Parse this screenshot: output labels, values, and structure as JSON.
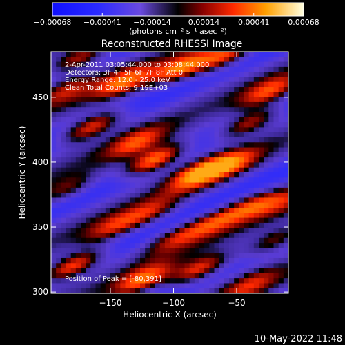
{
  "chart_data": {
    "type": "heatmap",
    "title": "Reconstructed RHESSI Image",
    "xlabel": "Heliocentric X (arcsec)",
    "ylabel": "Heliocentric Y (arcsec)",
    "xlim": [
      -197,
      -9
    ],
    "ylim": [
      299,
      485
    ],
    "x_ticks": [
      -150,
      -100,
      -50
    ],
    "x_tick_labels": [
      "−150",
      "−100",
      "−50"
    ],
    "y_ticks": [
      300,
      350,
      400,
      450
    ],
    "y_tick_labels": [
      "300",
      "350",
      "400",
      "450"
    ],
    "colorbar": {
      "ticks": [
        -0.00068,
        -0.00041,
        -0.00014,
        0.00014,
        0.00041,
        0.00068
      ],
      "tick_labels": [
        "−0.00068",
        "−0.00041",
        "−0.00014",
        "0.00014",
        "0.00041",
        "0.00068"
      ],
      "units_label": "(photons cm⁻² s⁻¹ asec⁻²)",
      "range": [
        -0.00068,
        0.00068
      ]
    },
    "annotations": [
      "2-Apr-2011 03:05:44.000 to 03:08:44.000",
      "Detectors: 3F 4F 5F 6F 7F 8F  Att 0",
      "Energy Range: 12.0 - 25.0 keV",
      "Clean     Total Counts: 9.19E+03"
    ],
    "peak_label": "Position of Peak = [-80,391]",
    "peak_position": [
      -80,
      391
    ],
    "grid": false,
    "blobs": [
      {
        "x": -80,
        "y": 391,
        "intensity": 1.0
      },
      {
        "x": -115,
        "y": 402,
        "intensity": 0.85
      },
      {
        "x": -55,
        "y": 398,
        "intensity": 0.8
      },
      {
        "x": -130,
        "y": 415,
        "intensity": 0.75
      },
      {
        "x": -165,
        "y": 427,
        "intensity": 0.7
      },
      {
        "x": -140,
        "y": 462,
        "intensity": 0.85
      },
      {
        "x": -95,
        "y": 473,
        "intensity": 0.85
      },
      {
        "x": -60,
        "y": 482,
        "intensity": 0.7
      },
      {
        "x": -25,
        "y": 455,
        "intensity": 0.75
      },
      {
        "x": -40,
        "y": 430,
        "intensity": 0.6
      },
      {
        "x": -175,
        "y": 480,
        "intensity": 0.6
      },
      {
        "x": -185,
        "y": 455,
        "intensity": 0.55
      },
      {
        "x": -150,
        "y": 350,
        "intensity": 0.55
      },
      {
        "x": -120,
        "y": 362,
        "intensity": 0.55
      },
      {
        "x": -100,
        "y": 340,
        "intensity": 0.5
      },
      {
        "x": -70,
        "y": 352,
        "intensity": 0.6
      },
      {
        "x": -40,
        "y": 365,
        "intensity": 0.6
      },
      {
        "x": -20,
        "y": 340,
        "intensity": 0.5
      },
      {
        "x": -180,
        "y": 320,
        "intensity": 0.75
      },
      {
        "x": -125,
        "y": 310,
        "intensity": 0.85
      },
      {
        "x": -80,
        "y": 318,
        "intensity": 0.7
      },
      {
        "x": -40,
        "y": 305,
        "intensity": 0.6
      },
      {
        "x": -15,
        "y": 370,
        "intensity": 0.5
      },
      {
        "x": -185,
        "y": 380,
        "intensity": 0.45
      }
    ]
  },
  "footer": {
    "date": "10-May-2022 11:48"
  }
}
